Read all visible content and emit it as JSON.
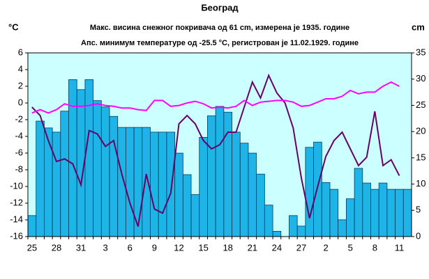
{
  "chart_data": {
    "type": "bar-line",
    "title": "Београд",
    "subtitle": [
      "Макс. висина снежног покривача од 61 cm, измерена је 1935. године",
      "Апс. минимум температуре од -25.5 °C, регистрован је 11.02.1929. године"
    ],
    "y_label": "°C",
    "y2_label": "cm",
    "categories": [
      "25",
      null,
      null,
      "28",
      null,
      null,
      "31",
      null,
      null,
      "3",
      null,
      null,
      "6",
      null,
      null,
      "9",
      null,
      null,
      "12",
      null,
      null,
      "15",
      null,
      null,
      "18",
      null,
      null,
      "21",
      null,
      null,
      "24",
      null,
      null,
      "27",
      null,
      null,
      "2",
      null,
      null,
      "5",
      null,
      null,
      "8",
      null,
      null,
      "11",
      null
    ],
    "series": [
      {
        "type": "bar",
        "axis": "y2",
        "color": "#1eb4e8",
        "values": [
          4,
          22,
          20.7,
          19.9,
          23.9,
          29.9,
          28,
          29.9,
          25.9,
          24.7,
          22.9,
          20.8,
          20.8,
          20.8,
          20.8,
          19.9,
          19.9,
          19.9,
          15.9,
          11.8,
          8,
          18.9,
          23,
          24.8,
          23.7,
          19.9,
          17.8,
          15.9,
          11.9,
          6,
          1,
          0,
          4,
          2,
          17,
          18,
          10.3,
          9,
          3.2,
          7.2,
          13,
          10.2,
          9,
          10.2,
          9,
          9,
          9
        ]
      },
      {
        "type": "line",
        "axis": "y",
        "color": "#660066",
        "values": [
          -0.5,
          -1.5,
          -4.5,
          -7,
          -6.7,
          -7.3,
          -9.8,
          -3.3,
          -3.7,
          -5.2,
          -4.5,
          -8.5,
          -12,
          -14.8,
          -8.5,
          -12.7,
          -13.2,
          -10.8,
          -2.5,
          -1.5,
          -2.5,
          -4.5,
          -5.5,
          -5,
          -3.5,
          -3.5,
          -0.5,
          2.5,
          0.6,
          3.3,
          1.2,
          0,
          -3,
          -9,
          -13.8,
          -10,
          -6.4,
          -4.5,
          -3.5,
          -5.5,
          -7.5,
          -6.5,
          -1,
          -7.5,
          -6.8,
          -8.7,
          null
        ]
      },
      {
        "type": "line",
        "axis": "y",
        "color": "#ff00ff",
        "values": [
          -1.2,
          -0.8,
          -1.2,
          -0.8,
          -0.1,
          -0.4,
          -0.4,
          -0.3,
          -0.1,
          -0.3,
          -0.4,
          -0.6,
          -0.6,
          -0.8,
          -0.9,
          0.3,
          0.3,
          -0.4,
          -0.3,
          0,
          0.2,
          -0.1,
          -0.6,
          -0.5,
          -0.6,
          -0.4,
          0.3,
          -0.3,
          0.1,
          0.2,
          0.3,
          0.3,
          0.1,
          -0.4,
          -0.3,
          0.1,
          0.5,
          0.5,
          0.8,
          1.5,
          1.1,
          1.3,
          1.3,
          2,
          2.5,
          2,
          null
        ]
      }
    ],
    "ylim": [
      -16,
      6
    ],
    "yticks": [
      -16,
      -14,
      -12,
      -10,
      -8,
      -6,
      -4,
      -2,
      0,
      2,
      4,
      6
    ],
    "y2lim": [
      0,
      35
    ],
    "y2ticks": [
      0,
      5,
      10,
      15,
      20,
      25,
      30,
      35
    ],
    "background": "#ccffff"
  }
}
